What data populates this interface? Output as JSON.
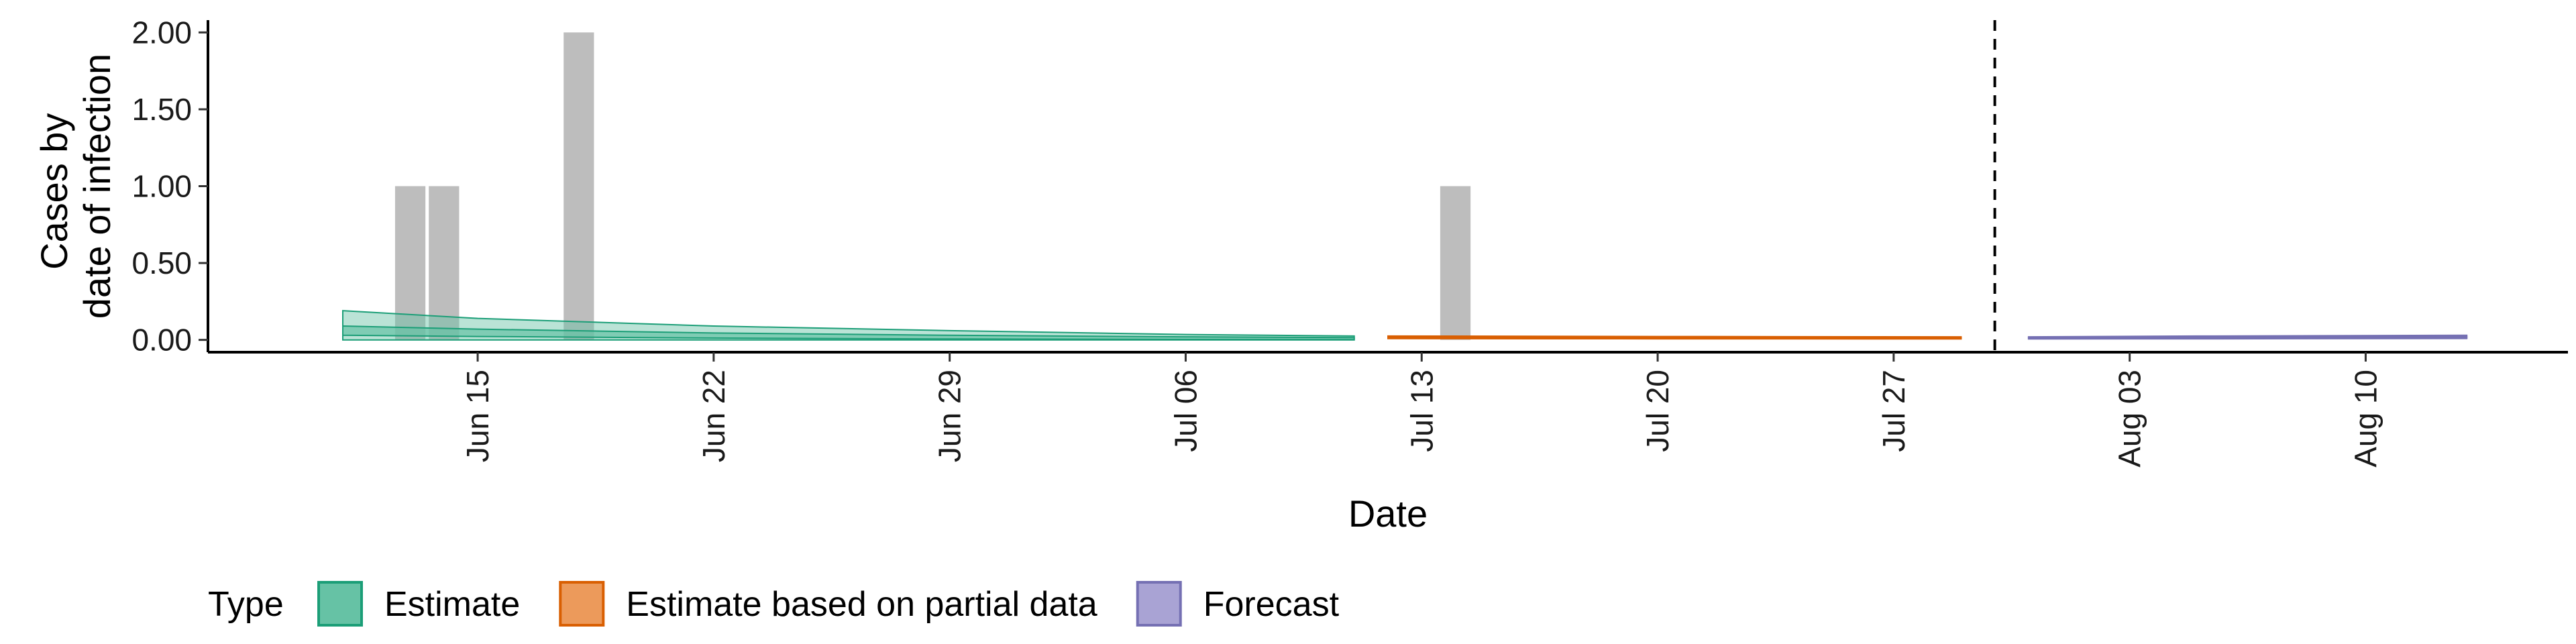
{
  "chart_data": {
    "type": "area",
    "title": "",
    "xlabel": "Date",
    "ylabel": [
      "Cases by",
      "date of infection"
    ],
    "x_range": [
      "2021-06-07",
      "2021-08-16"
    ],
    "ylim": [
      -0.08,
      2.08
    ],
    "yticks": [
      0,
      0.5,
      1,
      1.5,
      2
    ],
    "ytick_labels": [
      "0.00",
      "0.50",
      "1.00",
      "1.50",
      "2.00"
    ],
    "xticks": [
      "2021-06-15",
      "2021-06-22",
      "2021-06-29",
      "2021-07-06",
      "2021-07-13",
      "2021-07-20",
      "2021-07-27",
      "2021-08-03",
      "2021-08-10"
    ],
    "xtick_labels": [
      "Jun 15",
      "Jun 22",
      "Jun 29",
      "Jul 06",
      "Jul 13",
      "Jul 20",
      "Jul 27",
      "Aug 03",
      "Aug 10"
    ],
    "reported_cases": {
      "color": "#bdbdbd",
      "dates": [
        "2021-06-13",
        "2021-06-14",
        "2021-06-18",
        "2021-07-14"
      ],
      "values": [
        1,
        1,
        2,
        1
      ]
    },
    "cutoff_date": "2021-07-30",
    "legend": {
      "title": "Type",
      "position": "bottom",
      "entries": [
        {
          "label": "Estimate",
          "fill": "#66c2a5",
          "stroke": "#1b9e77"
        },
        {
          "label": "Estimate based on partial data",
          "fill": "#ec9a5b",
          "stroke": "#d95f02"
        },
        {
          "label": "Forecast",
          "fill": "#a9a3d4",
          "stroke": "#7570b3"
        }
      ]
    },
    "series": [
      {
        "type_ref": "Estimate",
        "color": "#1b9e77",
        "fill": "#66c2a5",
        "dates": [
          "2021-06-11",
          "2021-06-15",
          "2021-06-22",
          "2021-06-29",
          "2021-07-06",
          "2021-07-11"
        ],
        "outer_lower": [
          0.0,
          0.0,
          0.0,
          0.0,
          0.0,
          0.0
        ],
        "outer_upper": [
          0.19,
          0.14,
          0.09,
          0.06,
          0.035,
          0.025
        ],
        "inner_lower": [
          0.03,
          0.022,
          0.012,
          0.006,
          0.003,
          0.002
        ],
        "inner_upper": [
          0.09,
          0.07,
          0.045,
          0.03,
          0.02,
          0.015
        ]
      },
      {
        "type_ref": "Estimate based on partial data",
        "color": "#d95f02",
        "fill": "#ec9a5b",
        "dates": [
          "2021-07-12",
          "2021-07-20",
          "2021-07-29"
        ],
        "outer_lower": [
          0.008,
          0.007,
          0.006
        ],
        "outer_upper": [
          0.025,
          0.022,
          0.02
        ],
        "inner_lower": [
          0.012,
          0.011,
          0.01
        ],
        "inner_upper": [
          0.018,
          0.016,
          0.015
        ]
      },
      {
        "type_ref": "Forecast",
        "color": "#7570b3",
        "fill": "#a9a3d4",
        "dates": [
          "2021-07-31",
          "2021-08-05",
          "2021-08-13"
        ],
        "outer_lower": [
          0.006,
          0.007,
          0.009
        ],
        "outer_upper": [
          0.02,
          0.025,
          0.03
        ],
        "inner_lower": [
          0.01,
          0.012,
          0.014
        ],
        "inner_upper": [
          0.016,
          0.019,
          0.022
        ]
      }
    ]
  }
}
